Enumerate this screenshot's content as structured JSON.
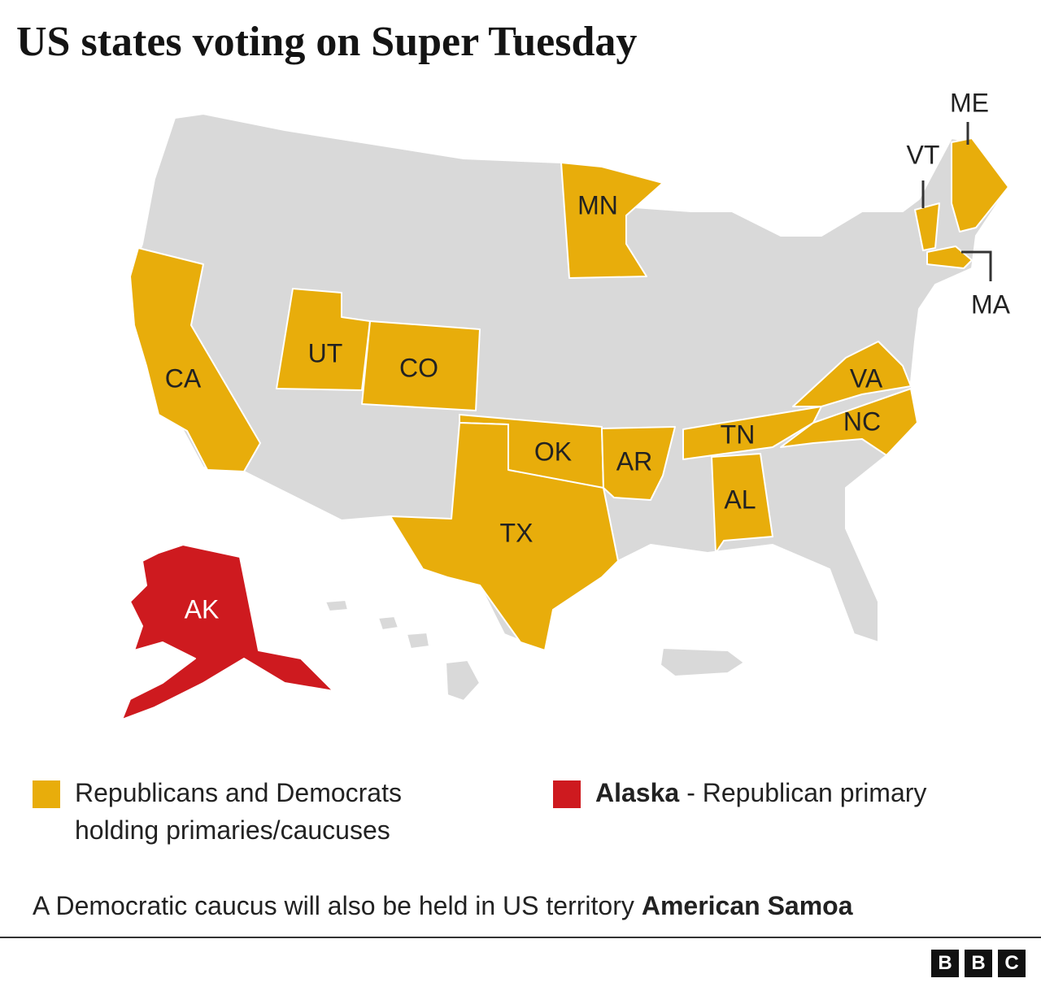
{
  "title": "US states voting on Super Tuesday",
  "map": {
    "base_color": "#d9d9d9",
    "states": [
      {
        "label": "CA",
        "color": "#e8ad0b"
      },
      {
        "label": "UT",
        "color": "#e8ad0b"
      },
      {
        "label": "CO",
        "color": "#e8ad0b"
      },
      {
        "label": "MN",
        "color": "#e8ad0b"
      },
      {
        "label": "OK",
        "color": "#e8ad0b"
      },
      {
        "label": "TX",
        "color": "#e8ad0b"
      },
      {
        "label": "AR",
        "color": "#e8ad0b"
      },
      {
        "label": "TN",
        "color": "#e8ad0b"
      },
      {
        "label": "AL",
        "color": "#e8ad0b"
      },
      {
        "label": "VA",
        "color": "#e8ad0b"
      },
      {
        "label": "NC",
        "color": "#e8ad0b"
      },
      {
        "label": "VT",
        "color": "#e8ad0b"
      },
      {
        "label": "ME",
        "color": "#e8ad0b"
      },
      {
        "label": "MA",
        "color": "#e8ad0b"
      },
      {
        "label": "AK",
        "color": "#ce1a1f"
      }
    ]
  },
  "legend": [
    {
      "label": "Republicans and Democrats holding primaries/caucuses",
      "color": "#e8ad0b"
    },
    {
      "bold": "Alaska",
      "label": "- Republican primary",
      "color": "#ce1a1f"
    }
  ],
  "footnote": {
    "text": "A Democratic caucus will also be held in US territory",
    "bold": "American Samoa"
  },
  "logo": [
    "B",
    "B",
    "C"
  ]
}
